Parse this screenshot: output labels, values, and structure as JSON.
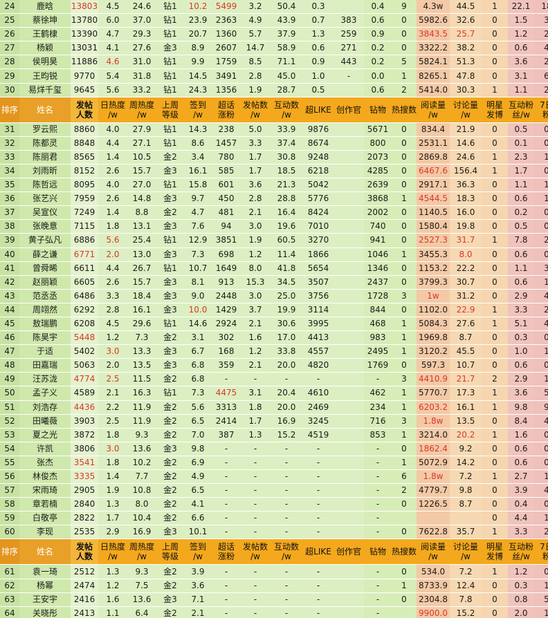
{
  "headers": [
    "排序",
    "姓名",
    "发帖\n人数",
    "日热度\n/w",
    "周热度\n/w",
    "上周\n等级",
    "签到\n/w",
    "超话\n涨粉",
    "发帖数\n/w",
    "互动数\n/w",
    "超LIKE",
    "创作官",
    "钻物",
    "热搜数",
    "阅读量\n/w",
    "讨论量\n/w",
    "明星\n发博",
    "互动粉\n丝/w",
    "7日\n粉"
  ],
  "header_rows": [
    {
      "row_id": "header-1"
    },
    {
      "row_id": "header-2"
    }
  ],
  "rows": [
    [
      "24",
      "鹿晗",
      "13803",
      "4.5",
      "24.6",
      "钻1",
      "10.2",
      "5499",
      "3.2",
      "50.4",
      "0.3",
      "",
      "0.4",
      "9",
      "4.3w",
      "44.5",
      "1",
      "22.1",
      "18"
    ],
    [
      "25",
      "蔡徐坤",
      "13780",
      "6.0",
      "37.0",
      "钻1",
      "23.9",
      "2363",
      "4.9",
      "43.9",
      "0.7",
      "383",
      "0.6",
      "0",
      "5982.6",
      "32.6",
      "0",
      "1.5",
      "3"
    ],
    [
      "26",
      "王鹤棣",
      "13390",
      "4.7",
      "29.3",
      "钻1",
      "20.7",
      "1360",
      "5.7",
      "37.9",
      "1.3",
      "259",
      "0.9",
      "0",
      "3843.5",
      "25.7",
      "0",
      "1.2",
      "2"
    ],
    [
      "27",
      "杨颖",
      "13031",
      "4.1",
      "27.6",
      "金3",
      "8.9",
      "2607",
      "14.7",
      "58.9",
      "0.6",
      "271",
      "0.2",
      "0",
      "3322.2",
      "38.2",
      "0",
      "0.6",
      "4"
    ],
    [
      "28",
      "侯明昊",
      "11886",
      "4.6",
      "31.0",
      "钻1",
      "9.9",
      "1759",
      "8.5",
      "71.1",
      "0.9",
      "443",
      "0.2",
      "5",
      "5824.1",
      "51.3",
      "0",
      "3.6",
      "2"
    ],
    [
      "29",
      "王昀锐",
      "9770",
      "5.4",
      "31.8",
      "钻1",
      "14.5",
      "3491",
      "2.8",
      "45.0",
      "1.0",
      "-",
      "0.0",
      "1",
      "8265.1",
      "47.8",
      "0",
      "3.1",
      "6"
    ],
    [
      "30",
      "易烊千玺",
      "9645",
      "5.6",
      "33.2",
      "钻1",
      "24.3",
      "1356",
      "1.9",
      "28.7",
      "0.5",
      "",
      "0.6",
      "2",
      "5414.0",
      "30.3",
      "1",
      "1.1",
      "2"
    ],
    "HDR",
    [
      "31",
      "罗云熙",
      "8860",
      "4.0",
      "27.9",
      "钻1",
      "14.3",
      "238",
      "5.0",
      "33.9",
      "9876",
      "",
      "5671",
      "0",
      "834.4",
      "21.9",
      "0",
      "0.5",
      "0"
    ],
    [
      "32",
      "陈都灵",
      "8848",
      "4.4",
      "27.1",
      "钻1",
      "8.6",
      "1457",
      "3.3",
      "37.4",
      "8674",
      "",
      "800",
      "0",
      "2531.1",
      "14.6",
      "0",
      "0.1",
      "0"
    ],
    [
      "33",
      "陈丽君",
      "8565",
      "1.4",
      "10.5",
      "金2",
      "3.4",
      "780",
      "1.7",
      "30.8",
      "9248",
      "",
      "2073",
      "0",
      "2869.8",
      "24.6",
      "1",
      "2.3",
      "1"
    ],
    [
      "34",
      "刘雨昕",
      "8152",
      "2.6",
      "15.7",
      "金3",
      "16.1",
      "585",
      "1.7",
      "18.5",
      "6218",
      "",
      "4285",
      "0",
      "6467.6",
      "156.4",
      "1",
      "1.7",
      "0"
    ],
    [
      "35",
      "陈哲远",
      "8095",
      "4.0",
      "27.0",
      "钻1",
      "15.8",
      "601",
      "3.6",
      "21.3",
      "5042",
      "",
      "2639",
      "0",
      "2917.1",
      "36.3",
      "0",
      "1.1",
      "1"
    ],
    [
      "36",
      "张艺兴",
      "7959",
      "2.6",
      "14.8",
      "金3",
      "9.7",
      "450",
      "2.8",
      "28.8",
      "5776",
      "",
      "3868",
      "1",
      "4544.5",
      "18.3",
      "0",
      "0.6",
      "1"
    ],
    [
      "37",
      "吴宣仪",
      "7249",
      "1.4",
      "8.8",
      "金2",
      "4.7",
      "481",
      "2.1",
      "16.4",
      "8424",
      "",
      "2002",
      "0",
      "1140.5",
      "16.0",
      "0",
      "0.2",
      "0"
    ],
    [
      "38",
      "张晚意",
      "7115",
      "1.8",
      "13.1",
      "金3",
      "7.6",
      "94",
      "3.0",
      "19.6",
      "7010",
      "",
      "740",
      "0",
      "1580.4",
      "19.8",
      "0",
      "0.5",
      "0"
    ],
    [
      "39",
      "黄子弘凡",
      "6886",
      "5.6",
      "25.4",
      "钻1",
      "12.9",
      "3851",
      "1.9",
      "60.5",
      "3270",
      "",
      "941",
      "0",
      "2527.3",
      "31.7",
      "1",
      "7.8",
      "2"
    ],
    [
      "40",
      "薛之谦",
      "6771",
      "2.0",
      "13.0",
      "金3",
      "7.3",
      "698",
      "1.2",
      "11.4",
      "1866",
      "",
      "1046",
      "1",
      "3455.3",
      "8.0",
      "0",
      "0.6",
      "0"
    ],
    [
      "41",
      "曾舜晞",
      "6611",
      "4.4",
      "26.7",
      "钻1",
      "10.7",
      "1649",
      "8.0",
      "41.8",
      "5654",
      "",
      "1346",
      "0",
      "1153.2",
      "22.2",
      "0",
      "1.1",
      "3"
    ],
    [
      "42",
      "赵丽颖",
      "6605",
      "2.6",
      "15.7",
      "金3",
      "8.1",
      "913",
      "15.3",
      "34.5",
      "3507",
      "",
      "2437",
      "0",
      "3799.3",
      "30.7",
      "0",
      "0.6",
      "1"
    ],
    [
      "43",
      "范丞丞",
      "6486",
      "3.3",
      "18.4",
      "金3",
      "9.0",
      "2448",
      "3.0",
      "25.0",
      "3756",
      "",
      "1728",
      "3",
      "1w",
      "31.2",
      "0",
      "2.9",
      "4"
    ],
    [
      "44",
      "周翊然",
      "6292",
      "2.8",
      "16.1",
      "金3",
      "10.0",
      "1429",
      "3.7",
      "19.9",
      "3114",
      "",
      "844",
      "0",
      "1102.0",
      "22.9",
      "1",
      "3.3",
      "2"
    ],
    [
      "45",
      "敖瑞鹏",
      "6208",
      "4.5",
      "29.6",
      "钻1",
      "14.6",
      "2924",
      "2.1",
      "30.6",
      "3995",
      "",
      "468",
      "1",
      "5084.3",
      "27.6",
      "1",
      "5.1",
      "4"
    ],
    [
      "46",
      "陈昊宇",
      "5448",
      "1.2",
      "7.3",
      "金2",
      "3.1",
      "302",
      "1.6",
      "17.0",
      "4413",
      "",
      "983",
      "1",
      "1969.8",
      "8.7",
      "0",
      "0.3",
      "0"
    ],
    [
      "47",
      "于适",
      "5402",
      "3.0",
      "13.3",
      "金3",
      "6.7",
      "168",
      "1.2",
      "33.8",
      "4557",
      "",
      "2495",
      "1",
      "3120.2",
      "45.5",
      "0",
      "1.0",
      "1"
    ],
    [
      "48",
      "田嘉瑞",
      "5063",
      "2.0",
      "13.5",
      "金3",
      "6.8",
      "359",
      "2.1",
      "20.0",
      "4820",
      "",
      "1769",
      "0",
      "597.3",
      "10.7",
      "0",
      "0.6",
      "0"
    ],
    [
      "49",
      "汪苏泷",
      "4774",
      "2.5",
      "11.5",
      "金2",
      "6.8",
      "-",
      "-",
      "-",
      "-",
      "",
      "-",
      "3",
      "4410.9",
      "21.7",
      "2",
      "2.9",
      "1"
    ],
    [
      "50",
      "孟子义",
      "4589",
      "2.1",
      "16.3",
      "钻1",
      "7.3",
      "4475",
      "3.1",
      "20.4",
      "4610",
      "",
      "462",
      "1",
      "5770.7",
      "17.3",
      "1",
      "3.6",
      "5"
    ],
    [
      "51",
      "刘浩存",
      "4436",
      "2.2",
      "11.9",
      "金2",
      "5.6",
      "3313",
      "1.8",
      "20.0",
      "2469",
      "",
      "234",
      "1",
      "6203.2",
      "16.1",
      "1",
      "9.8",
      "9"
    ],
    [
      "52",
      "田曦薇",
      "3903",
      "2.5",
      "11.9",
      "金2",
      "6.5",
      "2414",
      "1.7",
      "16.9",
      "3245",
      "",
      "716",
      "3",
      "1.8w",
      "13.5",
      "0",
      "8.4",
      "4"
    ],
    [
      "53",
      "夏之光",
      "3872",
      "1.8",
      "9.3",
      "金2",
      "7.0",
      "387",
      "1.3",
      "15.2",
      "4519",
      "",
      "853",
      "1",
      "3214.0",
      "20.2",
      "1",
      "1.6",
      "0"
    ],
    [
      "54",
      "许凯",
      "3806",
      "3.0",
      "13.6",
      "金3",
      "9.8",
      "-",
      "-",
      "-",
      "-",
      "",
      "-",
      "0",
      "1862.4",
      "9.2",
      "0",
      "0.6",
      "0"
    ],
    [
      "55",
      "张杰",
      "3541",
      "1.8",
      "10.2",
      "金2",
      "6.9",
      "-",
      "-",
      "-",
      "-",
      "",
      "-",
      "1",
      "5072.9",
      "14.2",
      "0",
      "0.6",
      "0"
    ],
    [
      "56",
      "林俊杰",
      "3335",
      "1.4",
      "7.7",
      "金2",
      "4.9",
      "-",
      "-",
      "-",
      "-",
      "",
      "-",
      "6",
      "1.8w",
      "7.2",
      "1",
      "2.7",
      "1"
    ],
    [
      "57",
      "宋雨琦",
      "2905",
      "1.9",
      "10.8",
      "金2",
      "6.5",
      "-",
      "-",
      "-",
      "-",
      "",
      "-",
      "2",
      "4779.7",
      "9.8",
      "0",
      "3.9",
      "4"
    ],
    [
      "58",
      "章若楠",
      "2840",
      "1.3",
      "8.0",
      "金2",
      "4.1",
      "-",
      "-",
      "-",
      "-",
      "",
      "-",
      "0",
      "1226.5",
      "8.7",
      "0",
      "0.4",
      "0"
    ],
    [
      "59",
      "白敬亭",
      "2822",
      "1.7",
      "10.4",
      "金2",
      "6.6",
      "-",
      "-",
      "-",
      "-",
      "",
      "-",
      "",
      "",
      "",
      "0",
      "4.4",
      "1"
    ],
    [
      "60",
      "李现",
      "2535",
      "2.9",
      "16.9",
      "金3",
      "10.1",
      "-",
      "-",
      "-",
      "-",
      "",
      "-",
      "0",
      "7622.8",
      "35.7",
      "1",
      "3.3",
      "2"
    ],
    "HDR",
    [
      "61",
      "袁一琦",
      "2512",
      "1.3",
      "9.3",
      "金2",
      "3.9",
      "-",
      "-",
      "-",
      "-",
      "",
      "-",
      "0",
      "534.0",
      "7.2",
      "1",
      "1.2",
      "0"
    ],
    [
      "62",
      "杨幂",
      "2474",
      "1.2",
      "7.5",
      "金2",
      "3.6",
      "-",
      "-",
      "-",
      "-",
      "",
      "-",
      "1",
      "8733.9",
      "12.4",
      "0",
      "0.3",
      "1"
    ],
    [
      "63",
      "王安宇",
      "2416",
      "1.6",
      "13.6",
      "金3",
      "7.1",
      "-",
      "-",
      "-",
      "-",
      "",
      "-",
      "0",
      "2304.8",
      "7.8",
      "0",
      "0.8",
      "5"
    ],
    [
      "64",
      "关晓彤",
      "2413",
      "1.1",
      "6.4",
      "金2",
      "2.1",
      "-",
      "-",
      "-",
      "-",
      "",
      "-",
      "",
      "9900.0",
      "15.2",
      "0",
      "2.0",
      "1"
    ]
  ],
  "red_cells": {
    "24": [
      2,
      6,
      7
    ],
    "25": [],
    "26": [
      14,
      15
    ],
    "28": [
      3
    ],
    "34": [
      14
    ],
    "36": [
      14
    ],
    "39": [
      3,
      14,
      15
    ],
    "40": [
      2,
      3,
      15
    ],
    "43": [
      14
    ],
    "44": [
      6,
      15
    ],
    "46": [
      2
    ],
    "47": [
      3
    ],
    "49": [
      2,
      3,
      14,
      15
    ],
    "50": [
      7
    ],
    "51": [
      2,
      14
    ],
    "52": [
      14
    ],
    "53": [
      15
    ],
    "54": [
      3,
      14
    ],
    "55": [
      2
    ],
    "56": [
      2,
      14
    ],
    "64": [
      14
    ]
  },
  "colors": {
    "header_bg": "#f4a81d",
    "rank_col": "#c7e3a4",
    "body_green": "#dcefc2",
    "orange_col": "#f6d9b3",
    "pink_col": "#f0c0bb",
    "highlight_text": "#d9382a"
  }
}
